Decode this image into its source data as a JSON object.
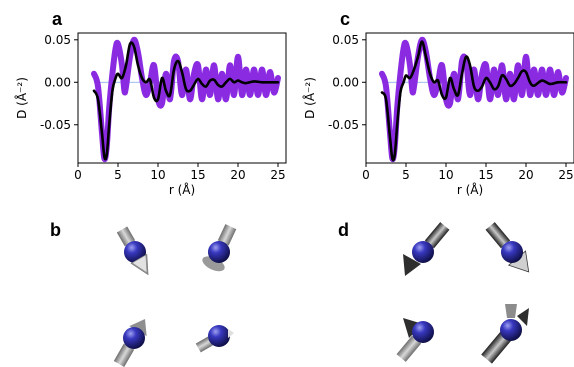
{
  "panels": {
    "a": {
      "label": "a"
    },
    "b": {
      "label": "b"
    },
    "c": {
      "label": "c"
    },
    "d": {
      "label": "d"
    }
  },
  "colors": {
    "experiment": "#8a2be2",
    "model": "#000000",
    "zero_line": "#7aa6e8",
    "spin_ball": "#3232b4",
    "arrow_light": "#9a9a9a",
    "arrow_dark": "#2e2e2e"
  },
  "chart_data": [
    {
      "id": "a",
      "type": "line",
      "xlabel": "r (Å)",
      "ylabel": "D (Å⁻²)",
      "xlim": [
        0,
        26
      ],
      "ylim": [
        -0.095,
        0.058
      ],
      "xticks": [
        "0",
        "5",
        "10",
        "15",
        "20",
        "25"
      ],
      "xtick_values": [
        0,
        5,
        10,
        15,
        20,
        25
      ],
      "yticks": [
        "0.05",
        "0.00",
        "-0.05"
      ],
      "ytick_values": [
        0.05,
        0.0,
        -0.05
      ],
      "series": [
        {
          "role": "experiment",
          "x": [
            2.0,
            2.5,
            3.0,
            3.3,
            3.6,
            3.9,
            4.3,
            4.7,
            5.0,
            5.5,
            5.8,
            6.0,
            6.5,
            7.0,
            7.5,
            8.0,
            8.5,
            9.0,
            9.5,
            10.0,
            10.5,
            11.0,
            11.5,
            12.0,
            12.5,
            13.0,
            13.5,
            14.0,
            14.5,
            15.0,
            15.5,
            16.0,
            16.5,
            17.0,
            17.5,
            18.0,
            18.5,
            19.0,
            19.5,
            20.0,
            20.5,
            21.0,
            21.5,
            22.0,
            22.5,
            23.0,
            23.5,
            24.0,
            24.5,
            25.0
          ],
          "y": [
            0.01,
            -0.005,
            -0.06,
            -0.09,
            -0.075,
            -0.03,
            0.01,
            0.04,
            0.045,
            0.02,
            -0.01,
            -0.005,
            0.03,
            0.05,
            0.035,
            0.005,
            -0.015,
            0.0,
            0.02,
            -0.02,
            -0.025,
            0.01,
            -0.02,
            0.025,
            0.025,
            -0.015,
            0.015,
            -0.02,
            0.01,
            0.02,
            -0.02,
            0.015,
            -0.015,
            0.02,
            -0.02,
            0.01,
            -0.02,
            0.02,
            -0.015,
            0.03,
            -0.015,
            0.015,
            -0.015,
            0.015,
            -0.015,
            0.015,
            -0.015,
            0.012,
            -0.012,
            0.005
          ]
        },
        {
          "role": "model",
          "x": [
            2.0,
            2.5,
            3.0,
            3.3,
            3.6,
            3.9,
            4.3,
            4.7,
            5.0,
            5.5,
            6.0,
            6.5,
            7.0,
            7.5,
            8.0,
            8.5,
            9.0,
            9.5,
            10.0,
            10.5,
            11.0,
            11.5,
            12.0,
            12.5,
            13.0,
            13.5,
            14.0,
            14.5,
            15.0,
            15.5,
            16.0,
            16.5,
            17.0,
            17.5,
            18.0,
            18.5,
            19.0,
            19.5,
            20.0,
            20.5,
            21.0,
            22.0,
            23.0,
            24.0,
            25.0
          ],
          "y": [
            -0.01,
            -0.02,
            -0.06,
            -0.088,
            -0.085,
            -0.05,
            -0.01,
            0.005,
            0.01,
            0.005,
            0.02,
            0.045,
            0.042,
            0.02,
            0.005,
            0.0,
            0.003,
            -0.018,
            -0.02,
            0.005,
            -0.01,
            -0.015,
            0.015,
            0.025,
            0.012,
            -0.008,
            -0.01,
            -0.003,
            0.004,
            -0.002,
            -0.005,
            0.002,
            0.003,
            -0.003,
            -0.005,
            0.0,
            0.004,
            0.0,
            0.002,
            0.0,
            -0.001,
            0.001,
            0.0,
            0.0,
            0.0
          ]
        }
      ]
    },
    {
      "id": "c",
      "type": "line",
      "xlabel": "r (Å)",
      "ylabel": "D (Å⁻²)",
      "xlim": [
        0,
        26
      ],
      "ylim": [
        -0.095,
        0.058
      ],
      "xticks": [
        "0",
        "5",
        "10",
        "15",
        "20",
        "25"
      ],
      "xtick_values": [
        0,
        5,
        10,
        15,
        20,
        25
      ],
      "yticks": [
        "0.05",
        "0.00",
        "-0.05"
      ],
      "ytick_values": [
        0.05,
        0.0,
        -0.05
      ],
      "series": [
        {
          "role": "experiment",
          "x": [
            2.0,
            2.5,
            3.0,
            3.3,
            3.6,
            3.9,
            4.3,
            4.7,
            5.0,
            5.5,
            5.8,
            6.0,
            6.5,
            7.0,
            7.5,
            8.0,
            8.5,
            9.0,
            9.5,
            10.0,
            10.5,
            11.0,
            11.5,
            12.0,
            12.5,
            13.0,
            13.5,
            14.0,
            14.5,
            15.0,
            15.5,
            16.0,
            16.5,
            17.0,
            17.5,
            18.0,
            18.5,
            19.0,
            19.5,
            20.0,
            20.5,
            21.0,
            21.5,
            22.0,
            22.5,
            23.0,
            23.5,
            24.0,
            24.5,
            25.0
          ],
          "y": [
            0.01,
            -0.005,
            -0.06,
            -0.09,
            -0.075,
            -0.03,
            0.01,
            0.04,
            0.045,
            0.02,
            -0.01,
            -0.005,
            0.03,
            0.05,
            0.035,
            0.005,
            -0.015,
            0.0,
            0.02,
            -0.02,
            -0.025,
            0.01,
            -0.02,
            0.025,
            0.025,
            -0.015,
            0.015,
            -0.02,
            0.01,
            0.02,
            -0.02,
            0.015,
            -0.015,
            0.02,
            -0.02,
            0.01,
            -0.02,
            0.02,
            -0.015,
            0.03,
            -0.015,
            0.015,
            -0.015,
            0.015,
            -0.015,
            0.015,
            -0.015,
            0.012,
            -0.012,
            0.005
          ]
        },
        {
          "role": "model",
          "x": [
            2.0,
            2.5,
            3.0,
            3.3,
            3.6,
            3.9,
            4.3,
            4.7,
            5.0,
            5.5,
            6.0,
            6.5,
            7.0,
            7.5,
            8.0,
            8.5,
            9.0,
            9.5,
            10.0,
            10.5,
            11.0,
            11.5,
            12.0,
            12.5,
            13.0,
            13.5,
            14.0,
            14.5,
            15.0,
            15.5,
            16.0,
            16.5,
            17.0,
            17.5,
            18.0,
            18.5,
            19.0,
            19.5,
            20.0,
            20.5,
            21.0,
            22.0,
            23.0,
            24.0,
            25.0
          ],
          "y": [
            -0.012,
            -0.02,
            -0.065,
            -0.09,
            -0.085,
            -0.05,
            -0.012,
            0.0,
            0.008,
            0.005,
            0.015,
            0.03,
            0.048,
            0.03,
            0.01,
            0.0,
            0.002,
            -0.015,
            -0.018,
            0.005,
            -0.008,
            -0.015,
            0.01,
            0.03,
            0.02,
            -0.005,
            -0.01,
            -0.005,
            0.005,
            0.0,
            -0.008,
            -0.005,
            0.008,
            0.004,
            -0.004,
            -0.002,
            0.005,
            0.013,
            0.012,
            0.0,
            -0.004,
            0.002,
            -0.002,
            0.0,
            0.0
          ]
        }
      ]
    }
  ]
}
